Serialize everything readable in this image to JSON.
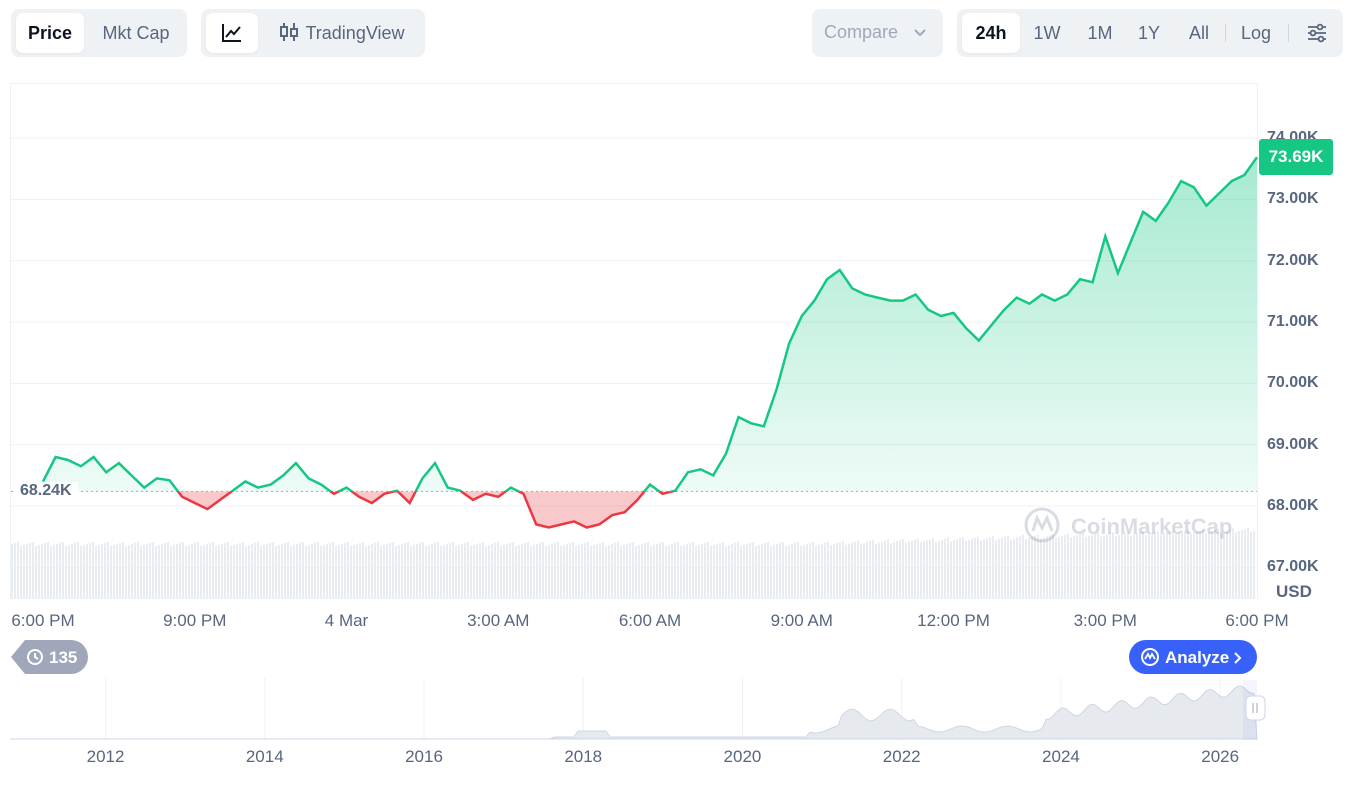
{
  "toolbar": {
    "metric_tabs": [
      "Price",
      "Mkt Cap"
    ],
    "chart_style_label": "TradingView",
    "compare_label": "Compare",
    "range_tabs": [
      "24h",
      "1W",
      "1M",
      "1Y",
      "All"
    ],
    "log_label": "Log"
  },
  "chart_data": {
    "type": "area",
    "x_tick_labels": [
      "6:00 PM",
      "9:00 PM",
      "4 Mar",
      "3:00 AM",
      "6:00 AM",
      "9:00 AM",
      "12:00 PM",
      "3:00 PM",
      "6:00 PM"
    ],
    "y_tick_labels": [
      "74.00K",
      "73.00K",
      "72.00K",
      "71.00K",
      "70.00K",
      "69.00K",
      "68.00K",
      "67.00K"
    ],
    "ylim": [
      66500,
      74900
    ],
    "y_unit": "USD",
    "baseline": 68240,
    "baseline_label": "68.24K",
    "current_label": "73.69K",
    "series": [
      {
        "x": [
          0,
          0.25,
          0.5,
          0.75,
          1,
          1.25,
          1.5,
          1.75,
          2,
          2.25,
          2.5,
          2.75,
          3,
          3.25,
          3.5,
          3.75,
          4,
          4.25,
          4.5,
          4.75,
          5,
          5.25,
          5.5,
          5.75,
          6,
          6.25,
          6.5,
          6.75,
          7,
          7.25,
          7.5,
          7.75,
          8,
          8.25,
          8.5,
          8.75,
          9,
          9.25,
          9.5,
          9.75,
          10,
          10.25,
          10.5,
          10.75,
          11,
          11.25,
          11.5,
          11.75,
          12,
          12.25,
          12.5,
          12.75,
          13,
          13.25,
          13.5,
          13.75,
          14,
          14.25,
          14.5,
          14.75,
          15,
          15.25,
          15.5,
          15.75,
          16,
          16.25,
          16.5,
          16.75,
          17,
          17.25,
          17.5,
          17.75,
          18,
          18.25,
          18.5,
          18.75,
          19,
          19.25,
          19.5,
          19.75,
          20,
          20.25,
          20.5,
          20.75,
          21,
          21.25,
          21.5,
          21.75,
          22,
          22.25,
          22.5,
          22.75,
          23,
          23.25,
          23.5,
          23.75,
          24
        ],
        "values": [
          68400,
          68800,
          68750,
          68650,
          68800,
          68550,
          68700,
          68500,
          68300,
          68450,
          68420,
          68150,
          68050,
          67950,
          68100,
          68250,
          68400,
          68300,
          68350,
          68500,
          68700,
          68450,
          68350,
          68200,
          68300,
          68150,
          68050,
          68200,
          68250,
          68050,
          68450,
          68700,
          68300,
          68250,
          68100,
          68200,
          68150,
          68300,
          68200,
          67700,
          67650,
          67700,
          67750,
          67650,
          67700,
          67850,
          67900,
          68100,
          68350,
          68200,
          68250,
          68550,
          68600,
          68500,
          68850,
          69450,
          69350,
          69300,
          69900,
          70650,
          71100,
          71350,
          71700,
          71850,
          71550,
          71450,
          71400,
          71350,
          71350,
          71450,
          71200,
          71100,
          71150,
          70900,
          70700,
          70950,
          71200,
          71400,
          71300,
          71450,
          71350,
          71450,
          71700,
          71650,
          72400,
          71800,
          72300,
          72800,
          72650,
          72950,
          73300,
          73200,
          72900,
          73100,
          73300,
          73400,
          73690
        ]
      }
    ],
    "navigator": {
      "year_labels": [
        "2012",
        "2014",
        "2016",
        "2018",
        "2020",
        "2022",
        "2024",
        "2026"
      ]
    }
  },
  "footer": {
    "history_count": "135",
    "analyze_label": "Analyze"
  },
  "watermark": "CoinMarketCap",
  "colors": {
    "up": "#16c784",
    "down": "#ea3943",
    "accent": "#3861fb"
  }
}
